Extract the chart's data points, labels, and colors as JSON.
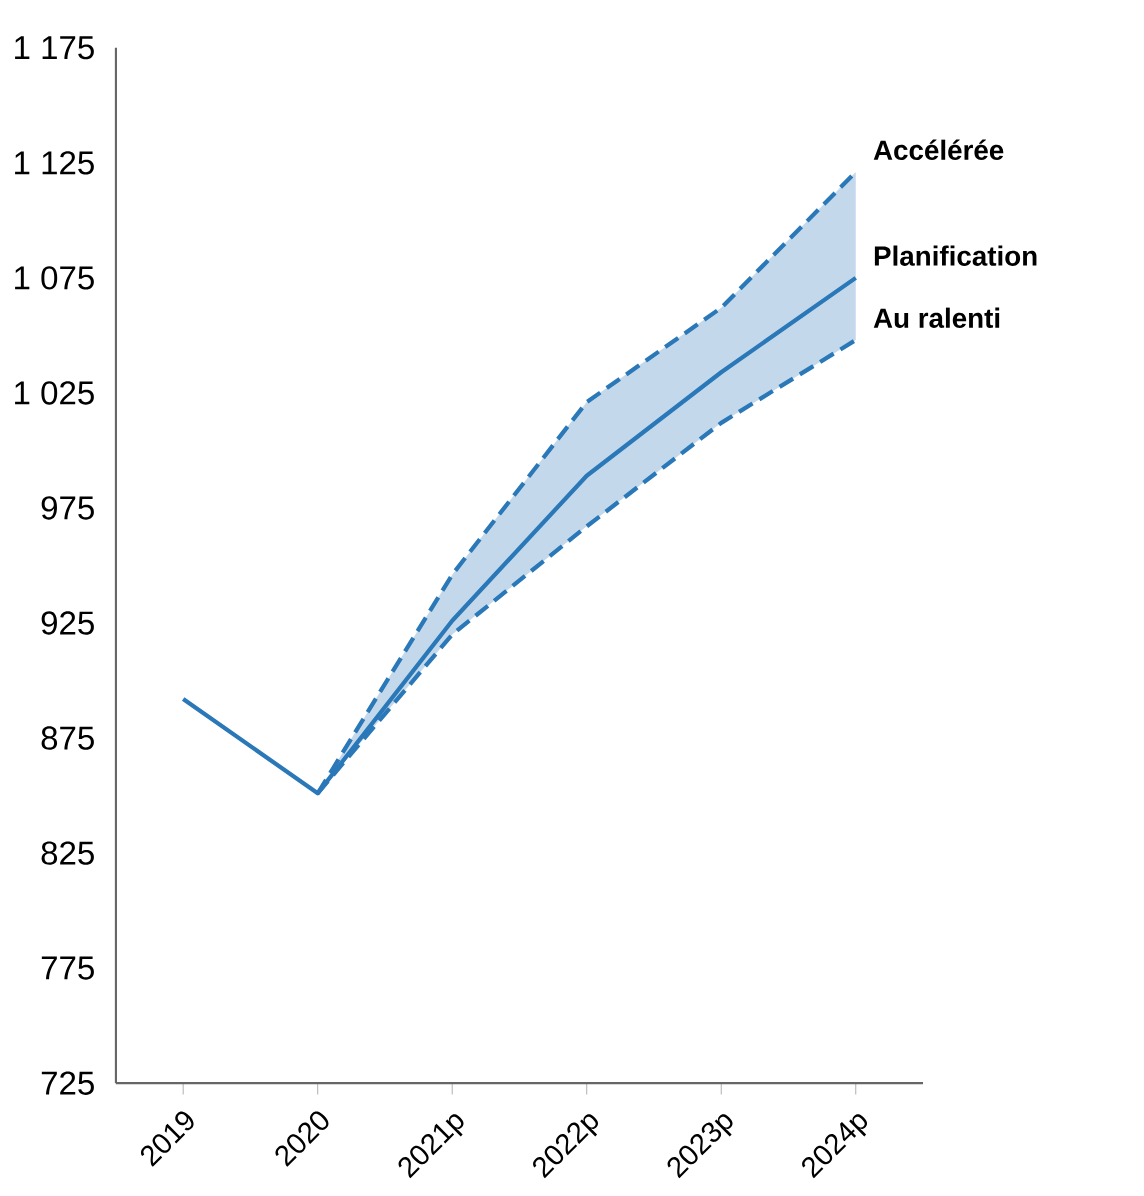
{
  "chart_data": {
    "type": "line",
    "categories": [
      "2019",
      "2020",
      "2021p",
      "2022p",
      "2023p",
      "2024p"
    ],
    "series": [
      {
        "name": "Accélérée",
        "color": "#2a78b8",
        "values": [
          null,
          851,
          946,
          1021,
          1062,
          1121
        ],
        "line_style": "dashed"
      },
      {
        "name": "Planification",
        "color": "#2a78b8",
        "values": [
          892,
          851,
          926,
          989,
          1034,
          1075
        ],
        "line_style": "solid",
        "lower": [
          null,
          851,
          920,
          967,
          1012,
          1048
        ],
        "upper": [
          null,
          851,
          946,
          1021,
          1062,
          1121
        ]
      },
      {
        "name": "Au ralenti",
        "color": "#2a78b8",
        "values": [
          null,
          851,
          920,
          967,
          1012,
          1048
        ],
        "line_style": "dashed"
      }
    ],
    "ylim": [
      725,
      1175
    ],
    "yticks": [
      725,
      775,
      825,
      875,
      925,
      975,
      {
        "value": 1025,
        "label": "1 025"
      },
      {
        "value": 1075,
        "label": "1 075"
      },
      {
        "value": 1125,
        "label": "1 125"
      },
      {
        "value": 1175,
        "label": "1 175"
      }
    ],
    "grid": false,
    "marker": "none"
  }
}
